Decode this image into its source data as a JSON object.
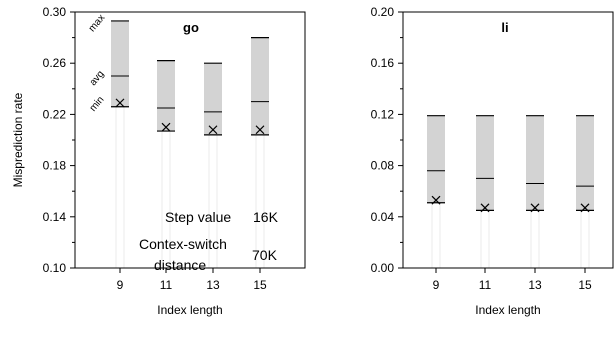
{
  "chart_data": [
    {
      "type": "range",
      "title": "go",
      "xlabel": "Index length",
      "ylabel": "Misprediction rate",
      "categories": [
        "9",
        "11",
        "13",
        "15"
      ],
      "ylim": [
        0.1,
        0.3
      ],
      "yticks": [
        "0.10",
        "0.14",
        "0.18",
        "0.22",
        "0.26",
        "0.30"
      ],
      "series": [
        {
          "name": "max",
          "values": [
            0.293,
            0.262,
            0.26,
            0.28
          ]
        },
        {
          "name": "avg",
          "values": [
            0.25,
            0.225,
            0.222,
            0.23
          ]
        },
        {
          "name": "min",
          "values": [
            0.226,
            0.207,
            0.204,
            0.204
          ]
        },
        {
          "name": "x-marker",
          "values": [
            0.229,
            0.21,
            0.208,
            0.208
          ]
        }
      ],
      "range_labels": {
        "max": "max",
        "avg": "avg",
        "min": "min"
      },
      "annotations": [
        {
          "label": "Step value",
          "value": "16K"
        },
        {
          "label": "Contex-switch",
          "label2": "distance",
          "value": "70K"
        }
      ],
      "grid": false
    },
    {
      "type": "range",
      "title": "li",
      "xlabel": "Index length",
      "ylabel": "",
      "categories": [
        "9",
        "11",
        "13",
        "15"
      ],
      "ylim": [
        0.0,
        0.2
      ],
      "yticks": [
        "0.00",
        "0.04",
        "0.08",
        "0.12",
        "0.16",
        "0.20"
      ],
      "series": [
        {
          "name": "max",
          "values": [
            0.119,
            0.119,
            0.119,
            0.119
          ]
        },
        {
          "name": "avg",
          "values": [
            0.076,
            0.07,
            0.066,
            0.064
          ]
        },
        {
          "name": "min",
          "values": [
            0.051,
            0.045,
            0.045,
            0.045
          ]
        },
        {
          "name": "x-marker",
          "values": [
            0.053,
            0.047,
            0.047,
            0.047
          ]
        }
      ],
      "grid": false
    }
  ]
}
